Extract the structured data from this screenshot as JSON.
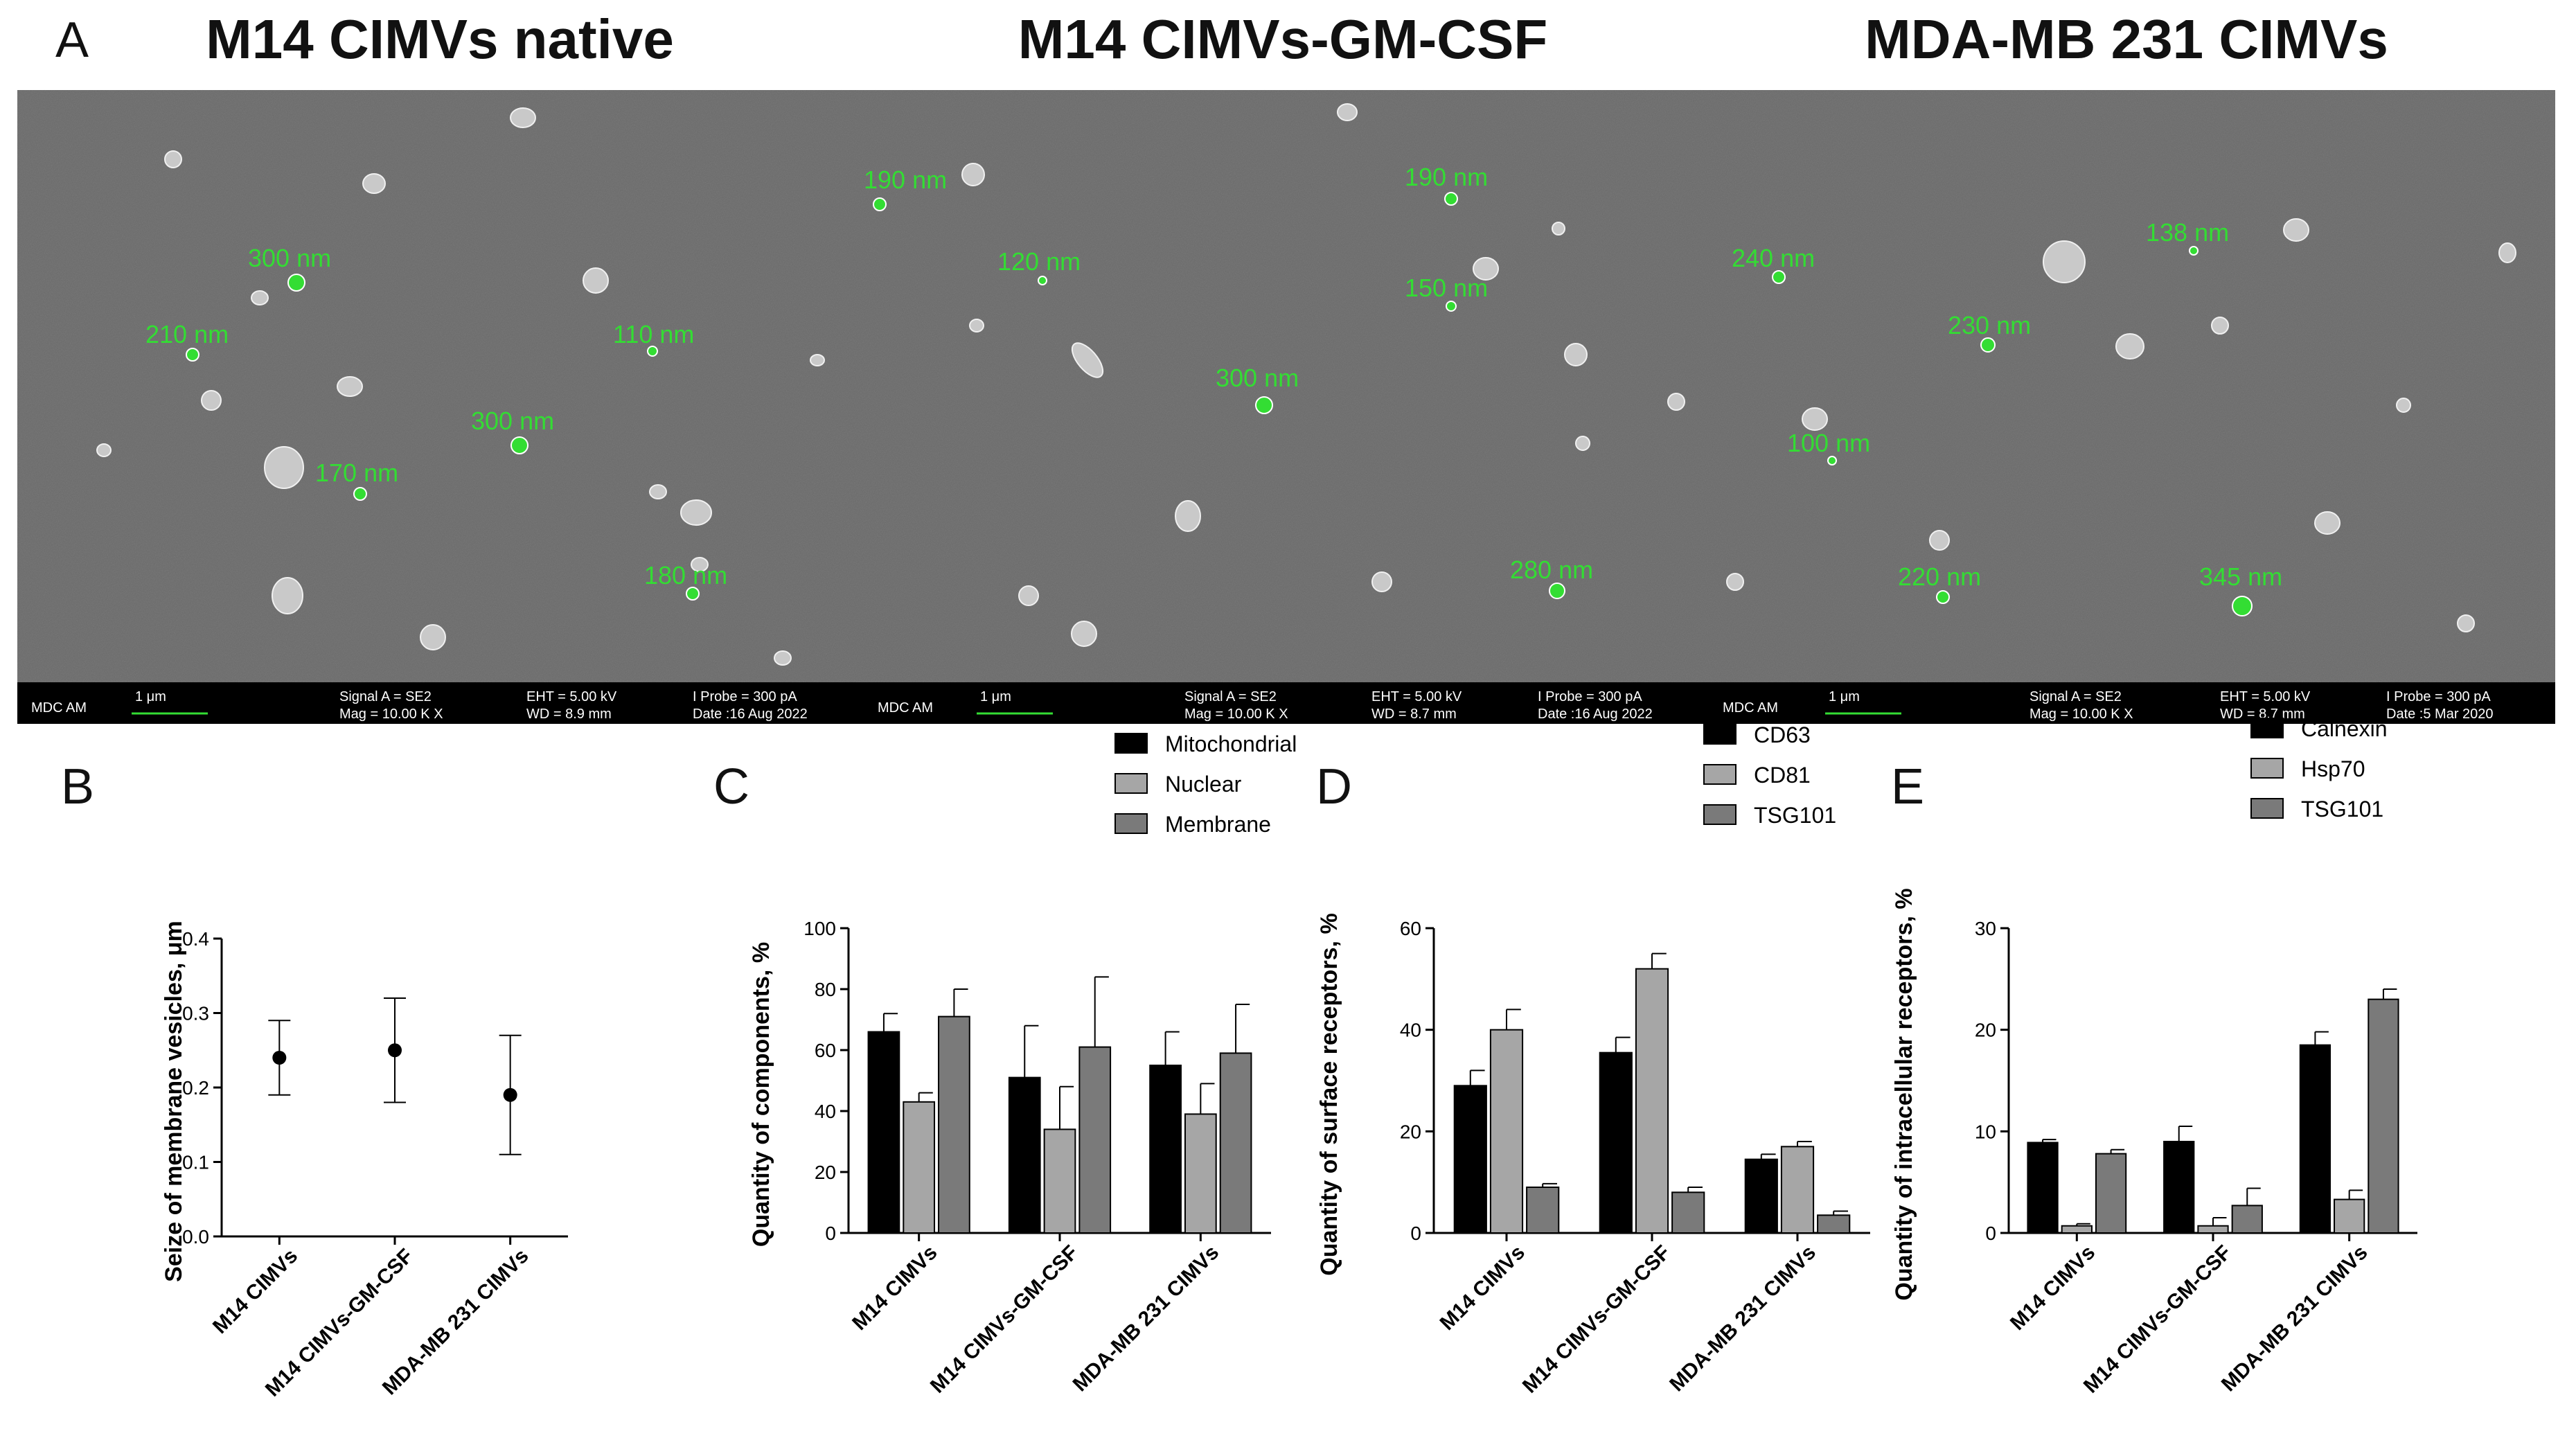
{
  "panel_letters": [
    "A",
    "B",
    "C",
    "D",
    "E"
  ],
  "micrographs": [
    {
      "title": "M14 CIMVs native",
      "labels": [
        "300 nm",
        "210 nm",
        "110 nm",
        "300 nm",
        "170 nm",
        "180 nm"
      ],
      "info": {
        "left": "MDC AM",
        "scale": "1 μm",
        "signal": "Signal A = SE2",
        "mag": "Mag =  10.00 K X",
        "eht": "EHT =  5.00 kV",
        "wd": "WD =  8.9 mm",
        "probe": "I Probe =   300 pA",
        "date": "Date :16 Aug 2022"
      }
    },
    {
      "title": "M14 CIMVs-GM-CSF",
      "labels": [
        "190 nm",
        "120 nm",
        "190 nm",
        "150 nm",
        "300 nm",
        "280 nm"
      ],
      "info": {
        "left": "MDC AM",
        "scale": "1 μm",
        "signal": "Signal A = SE2",
        "mag": "Mag =  10.00 K X",
        "eht": "EHT =  5.00 kV",
        "wd": "WD =  8.7 mm",
        "probe": "I Probe =   300 pA",
        "date": "Date :16 Aug 2022"
      }
    },
    {
      "title": "MDA-MB 231 CIMVs",
      "labels": [
        "240 nm",
        "138 nm",
        "230 nm",
        "100 nm",
        "220 nm",
        "345 nm"
      ],
      "info": {
        "left": "MDC AM",
        "scale": "1 μm",
        "signal": "Signal A = SE2",
        "mag": "Mag =  10.00 K X",
        "eht": "EHT =  5.00 kV",
        "wd": "WD =  8.7 mm",
        "probe": "I Probe =   300 pA",
        "date": "Date :5 Mar 2020"
      }
    }
  ],
  "colors": {
    "series1": "#000000",
    "series2": "#a6a6a6",
    "series3": "#7a7a7a",
    "sem_bg": "#6a6a6a",
    "label_green": "#33dd33"
  },
  "chart_data": [
    {
      "type": "scatter",
      "panel": "B",
      "ylabel": "Seize of membrane vesicles, μm",
      "categories": [
        "M14 CIMVs",
        "M14 CIMVs-GM-CSF",
        "MDA-MB 231 CIMVs"
      ],
      "values": [
        0.24,
        0.25,
        0.19
      ],
      "errors": [
        0.05,
        0.07,
        0.08
      ],
      "ylim": [
        0,
        0.4
      ],
      "yticks": [
        "0.0",
        "0.1",
        "0.2",
        "0.3",
        "0.4"
      ]
    },
    {
      "type": "bar",
      "panel": "C",
      "ylabel": "Quantity of components, %",
      "categories": [
        "M14 CIMVs",
        "M14 CIMVs-GM-CSF",
        "MDA-MB 231 CIMVs"
      ],
      "series": [
        {
          "name": "Mitochondrial",
          "values": [
            66,
            51,
            55
          ],
          "errors": [
            6,
            17,
            11
          ]
        },
        {
          "name": "Nuclear",
          "values": [
            43,
            34,
            39
          ],
          "errors": [
            3,
            14,
            10
          ]
        },
        {
          "name": "Membrane",
          "values": [
            71,
            61,
            59
          ],
          "errors": [
            9,
            23,
            16
          ]
        }
      ],
      "ylim": [
        0,
        100
      ],
      "yticks": [
        "0",
        "20",
        "40",
        "60",
        "80",
        "100"
      ]
    },
    {
      "type": "bar",
      "panel": "D",
      "ylabel": "Quantity of surface receptors, %",
      "categories": [
        "M14 CIMVs",
        "M14 CIMVs-GM-CSF",
        "MDA-MB 231 CIMVs"
      ],
      "series": [
        {
          "name": "CD63",
          "values": [
            29,
            35.5,
            14.5
          ],
          "errors": [
            3,
            3,
            1
          ]
        },
        {
          "name": "CD81",
          "values": [
            40,
            52,
            17
          ],
          "errors": [
            4,
            3,
            1
          ]
        },
        {
          "name": "TSG101",
          "values": [
            9,
            8,
            3.5
          ],
          "errors": [
            0.7,
            1,
            0.8
          ]
        }
      ],
      "ylim": [
        0,
        60
      ],
      "yticks": [
        "0",
        "20",
        "40",
        "60"
      ]
    },
    {
      "type": "bar",
      "panel": "E",
      "ylabel": "Quantity of intracellular receptors, %",
      "categories": [
        "M14 CIMVs",
        "M14 CIMVs-GM-CSF",
        "MDA-MB 231 CIMVs"
      ],
      "series": [
        {
          "name": "Calnexin",
          "values": [
            8.9,
            9,
            18.5
          ],
          "errors": [
            0.3,
            1.5,
            1.3
          ]
        },
        {
          "name": "Hsp70",
          "values": [
            0.7,
            0.7,
            3.3
          ],
          "errors": [
            0.2,
            0.8,
            0.9
          ]
        },
        {
          "name": "TSG101",
          "values": [
            7.8,
            2.7,
            23
          ],
          "errors": [
            0.4,
            1.7,
            1
          ]
        }
      ],
      "ylim": [
        0,
        30
      ],
      "yticks": [
        "0",
        "10",
        "20",
        "30"
      ]
    }
  ]
}
